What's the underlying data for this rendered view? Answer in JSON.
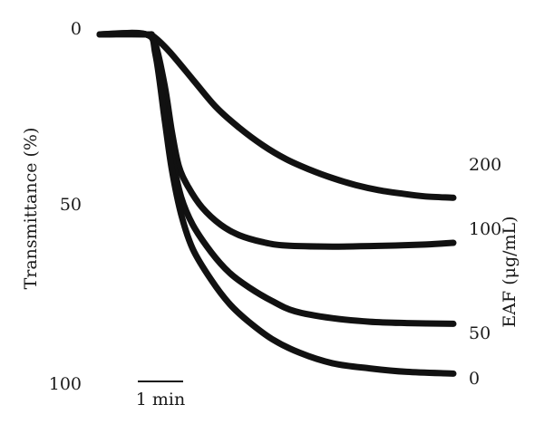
{
  "chart_data": {
    "type": "line",
    "ylabel": "Transmittance (%)",
    "y_tick_labels": [
      "0",
      "50",
      "100"
    ],
    "ylim": [
      0,
      100
    ],
    "y_inverted": true,
    "xlim_min": [
      0,
      7.6
    ],
    "scale_bar": {
      "label": "1 min",
      "length_min": 1
    },
    "legend_title": "EAF (μg/mL)",
    "line_color": "#111111",
    "series": [
      {
        "name": "200",
        "points": [
          [
            0,
            0
          ],
          [
            1.0,
            0
          ],
          [
            1.15,
            0.5
          ],
          [
            1.5,
            5
          ],
          [
            2.0,
            13
          ],
          [
            2.5,
            21
          ],
          [
            3.0,
            27
          ],
          [
            3.5,
            32
          ],
          [
            4.0,
            36
          ],
          [
            4.5,
            39
          ],
          [
            5.0,
            41.5
          ],
          [
            5.5,
            43.5
          ],
          [
            6.0,
            45
          ],
          [
            6.5,
            46
          ],
          [
            7.0,
            46.8
          ],
          [
            7.6,
            47.2
          ]
        ]
      },
      {
        "name": "100",
        "points": [
          [
            0,
            0
          ],
          [
            1.0,
            0
          ],
          [
            1.2,
            3
          ],
          [
            1.4,
            15
          ],
          [
            1.55,
            28
          ],
          [
            1.7,
            38
          ],
          [
            1.9,
            44
          ],
          [
            2.2,
            50
          ],
          [
            2.6,
            55
          ],
          [
            3.0,
            58
          ],
          [
            3.5,
            60
          ],
          [
            4.0,
            61
          ],
          [
            5.0,
            61.3
          ],
          [
            6.0,
            61.1
          ],
          [
            7.0,
            60.7
          ],
          [
            7.6,
            60.2
          ]
        ]
      },
      {
        "name": "50",
        "points": [
          [
            0,
            0
          ],
          [
            1.0,
            0
          ],
          [
            1.2,
            5
          ],
          [
            1.4,
            22
          ],
          [
            1.55,
            35
          ],
          [
            1.75,
            47
          ],
          [
            2.0,
            55
          ],
          [
            2.4,
            63
          ],
          [
            2.8,
            69
          ],
          [
            3.2,
            73
          ],
          [
            3.7,
            77
          ],
          [
            4.2,
            80
          ],
          [
            5.0,
            82
          ],
          [
            5.8,
            83
          ],
          [
            6.6,
            83.4
          ],
          [
            7.6,
            83.6
          ]
        ]
      },
      {
        "name": "0",
        "points": [
          [
            0,
            0
          ],
          [
            1.0,
            0
          ],
          [
            1.2,
            6
          ],
          [
            1.4,
            25
          ],
          [
            1.55,
            39
          ],
          [
            1.75,
            52
          ],
          [
            2.0,
            62
          ],
          [
            2.4,
            71
          ],
          [
            2.8,
            78
          ],
          [
            3.2,
            83
          ],
          [
            3.7,
            88
          ],
          [
            4.3,
            92
          ],
          [
            5.0,
            95
          ],
          [
            5.8,
            96.5
          ],
          [
            6.6,
            97.5
          ],
          [
            7.6,
            98
          ]
        ]
      }
    ]
  }
}
